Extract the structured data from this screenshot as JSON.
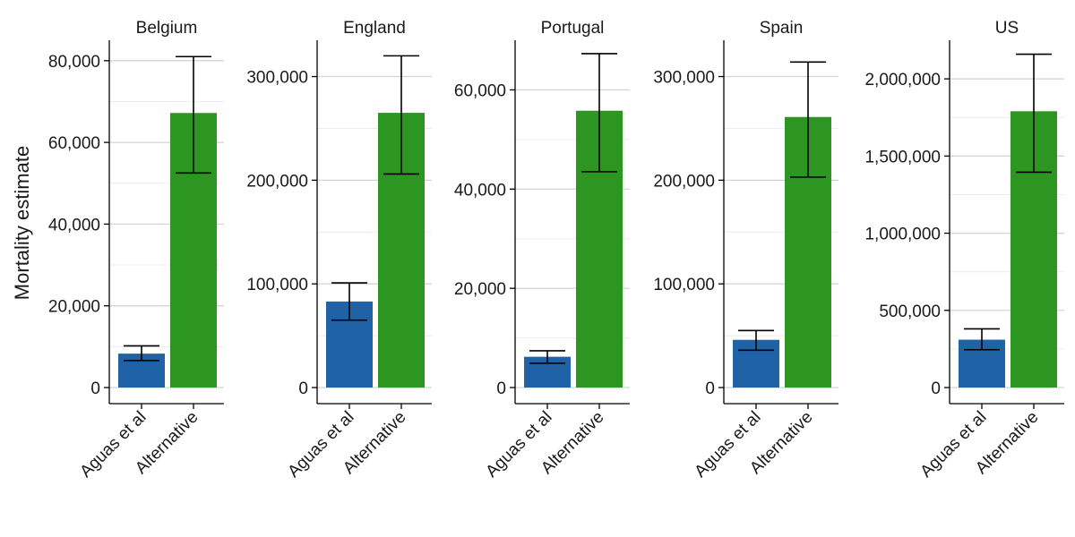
{
  "chart_data": {
    "type": "bar",
    "ylabel": "Mortality estimate",
    "categories": [
      "Aguas et al",
      "Alternative"
    ],
    "colors": {
      "Aguas et al": "#1f62a5",
      "Alternative": "#2d9521"
    },
    "facets": [
      {
        "title": "Belgium",
        "ylim": [
          0,
          85000
        ],
        "ticks": [
          0,
          20000,
          40000,
          60000,
          80000
        ],
        "tick_labels": [
          "0",
          "20,000",
          "40,000",
          "60,000",
          "80,000"
        ],
        "values": [
          8300,
          67200
        ],
        "error_low": [
          6600,
          52500
        ],
        "error_high": [
          10200,
          81000
        ]
      },
      {
        "title": "England",
        "ylim": [
          0,
          335000
        ],
        "ticks": [
          0,
          100000,
          200000,
          300000
        ],
        "tick_labels": [
          "0",
          "100,000",
          "200,000",
          "300,000"
        ],
        "values": [
          83000,
          265000
        ],
        "error_low": [
          65000,
          206000
        ],
        "error_high": [
          101000,
          320000
        ]
      },
      {
        "title": "Portugal",
        "ylim": [
          0,
          70000
        ],
        "ticks": [
          0,
          20000,
          40000,
          60000
        ],
        "tick_labels": [
          "0",
          "20,000",
          "40,000",
          "60,000"
        ],
        "values": [
          6200,
          55800
        ],
        "error_low": [
          4900,
          43500
        ],
        "error_high": [
          7400,
          67300
        ]
      },
      {
        "title": "Spain",
        "ylim": [
          0,
          335000
        ],
        "ticks": [
          0,
          100000,
          200000,
          300000
        ],
        "tick_labels": [
          "0",
          "100,000",
          "200,000",
          "300,000"
        ],
        "values": [
          46000,
          261000
        ],
        "error_low": [
          36000,
          203000
        ],
        "error_high": [
          55000,
          314000
        ]
      },
      {
        "title": "US",
        "ylim": [
          0,
          2250000
        ],
        "ticks": [
          0,
          500000,
          1000000,
          1500000,
          2000000
        ],
        "tick_labels": [
          "0",
          "500,000",
          "1,000,000",
          "1,500,000",
          "2,000,000"
        ],
        "values": [
          310000,
          1790000
        ],
        "error_low": [
          245000,
          1395000
        ],
        "error_high": [
          380000,
          2160000
        ]
      }
    ]
  }
}
